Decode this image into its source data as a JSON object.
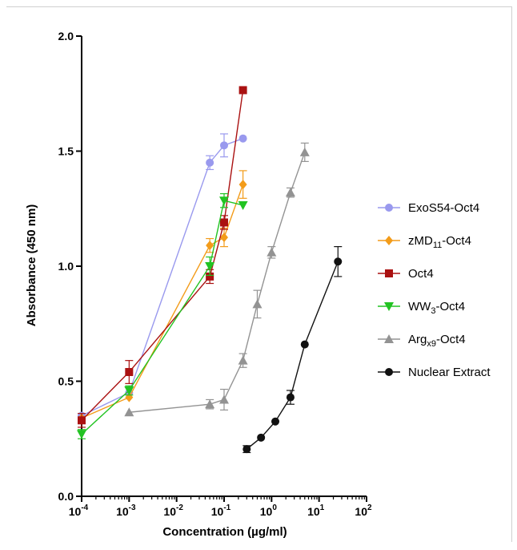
{
  "chart_data": {
    "type": "line",
    "xlabel": "Concentration (µg/ml)",
    "ylabel": "Absorbance (450 nm)",
    "x_scale": "log",
    "xlim": [
      0.0001,
      100
    ],
    "ylim": [
      0.0,
      2.0
    ],
    "x_ticks": [
      {
        "value": 0.0001,
        "base": "10",
        "exp": "-4"
      },
      {
        "value": 0.001,
        "base": "10",
        "exp": "-3"
      },
      {
        "value": 0.01,
        "base": "10",
        "exp": "-2"
      },
      {
        "value": 0.1,
        "base": "10",
        "exp": "-1"
      },
      {
        "value": 1,
        "base": "10",
        "exp": "0"
      },
      {
        "value": 10,
        "base": "10",
        "exp": "1"
      },
      {
        "value": 100,
        "base": "10",
        "exp": "2"
      }
    ],
    "y_ticks": [
      {
        "value": 0.0,
        "label": "0.0"
      },
      {
        "value": 0.5,
        "label": "0.5"
      },
      {
        "value": 1.0,
        "label": "1.0"
      },
      {
        "value": 1.5,
        "label": "1.5"
      },
      {
        "value": 2.0,
        "label": "2.0"
      }
    ],
    "grid": false,
    "legend_position": "right",
    "series": [
      {
        "name": "ExoS54-Oct4",
        "legend_parts": [
          {
            "t": "ExoS54-Oct4",
            "sub": false
          }
        ],
        "color": "#9999ee",
        "marker": "circle",
        "x": [
          0.0001,
          0.001,
          0.05,
          0.1,
          0.25
        ],
        "y": [
          0.35,
          0.45,
          1.45,
          1.525,
          1.555
        ],
        "err": [
          0.0,
          0.0,
          0.03,
          0.05,
          0.0
        ]
      },
      {
        "name": "zMD11-Oct4",
        "legend_parts": [
          {
            "t": "zMD",
            "sub": false
          },
          {
            "t": "11",
            "sub": true
          },
          {
            "t": "-Oct4",
            "sub": false
          }
        ],
        "color": "#f39c1a",
        "marker": "diamond",
        "x": [
          0.0001,
          0.001,
          0.05,
          0.1,
          0.25
        ],
        "y": [
          0.34,
          0.43,
          1.09,
          1.125,
          1.355
        ],
        "err": [
          0.0,
          0.0,
          0.03,
          0.04,
          0.06
        ]
      },
      {
        "name": "Oct4",
        "legend_parts": [
          {
            "t": "Oct4",
            "sub": false
          }
        ],
        "color": "#aa1111",
        "marker": "square",
        "x": [
          0.0001,
          0.001,
          0.05,
          0.1,
          0.25
        ],
        "y": [
          0.33,
          0.54,
          0.955,
          1.19,
          1.765
        ],
        "err": [
          0.03,
          0.05,
          0.03,
          0.03,
          0.0
        ]
      },
      {
        "name": "WW3-Oct4",
        "legend_parts": [
          {
            "t": "WW",
            "sub": false
          },
          {
            "t": "3",
            "sub": true
          },
          {
            "t": "-Oct4",
            "sub": false
          }
        ],
        "color": "#22c322",
        "marker": "triangle-down",
        "x": [
          0.0001,
          0.001,
          0.05,
          0.1,
          0.25
        ],
        "y": [
          0.27,
          0.46,
          1.0,
          1.285,
          1.265
        ],
        "err": [
          0.02,
          0.02,
          0.04,
          0.03,
          0.0
        ]
      },
      {
        "name": "Argx9-Oct4",
        "legend_parts": [
          {
            "t": "Arg",
            "sub": false
          },
          {
            "t": "x9",
            "sub": true
          },
          {
            "t": "-Oct4",
            "sub": false
          }
        ],
        "color": "#939393",
        "marker": "triangle-up",
        "x": [
          0.001,
          0.05,
          0.1,
          0.25,
          0.5,
          1.0,
          2.5,
          5.0
        ],
        "y": [
          0.365,
          0.4,
          0.42,
          0.59,
          0.835,
          1.06,
          1.32,
          1.495
        ],
        "err": [
          0.0,
          0.02,
          0.045,
          0.03,
          0.06,
          0.025,
          0.02,
          0.04
        ]
      },
      {
        "name": "Nuclear Extract",
        "legend_parts": [
          {
            "t": "Nuclear Extract",
            "sub": false
          }
        ],
        "color": "#111111",
        "marker": "circle",
        "x": [
          0.3,
          0.6,
          1.2,
          2.5,
          5.0,
          25.0
        ],
        "y": [
          0.205,
          0.255,
          0.325,
          0.43,
          0.66,
          1.02
        ],
        "err": [
          0.015,
          0.0,
          0.0,
          0.03,
          0.0,
          0.065
        ]
      }
    ]
  }
}
